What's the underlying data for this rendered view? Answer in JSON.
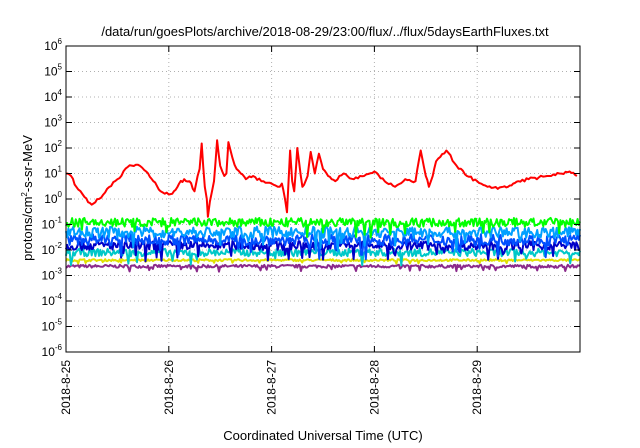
{
  "chart_data": {
    "type": "line",
    "title": "/data/run/goesPlots/archive/2018-08-29/23:00/flux/../flux/5daysEarthFluxes.txt",
    "xlabel": "Coordinated Universal Time (UTC)",
    "ylabel": {
      "prefix": "protons/cm",
      "sup": "2",
      "suffix": "-s-sr-MeV"
    },
    "y_scale": "log",
    "ylim": [
      1e-06,
      1000000.0
    ],
    "y_tick_exponents": [
      -6,
      -5,
      -4,
      -3,
      -2,
      -1,
      0,
      1,
      2,
      3,
      4,
      5,
      6
    ],
    "y_tick_base": "10",
    "xlim": [
      "2018-08-25",
      "2018-08-30"
    ],
    "x_tick_labels": [
      "2018-8-25",
      "2018-8-26",
      "2018-8-27",
      "2018-8-28",
      "2018-8-29"
    ],
    "grid": true,
    "legend": "none",
    "series": [
      {
        "color": "#ff0000",
        "x": [
          0.0,
          0.05,
          0.1,
          0.18,
          0.25,
          0.32,
          0.4,
          0.5,
          0.6,
          0.7,
          0.78,
          0.85,
          0.92,
          1.0,
          1.05,
          1.1,
          1.15,
          1.2,
          1.25,
          1.28,
          1.3,
          1.32,
          1.35,
          1.37,
          1.38,
          1.4,
          1.42,
          1.44,
          1.47,
          1.5,
          1.52,
          1.54,
          1.56,
          1.58,
          1.62,
          1.66,
          1.7,
          1.75,
          1.82,
          1.9,
          2.0,
          2.06,
          2.1,
          2.13,
          2.15,
          2.18,
          2.2,
          2.22,
          2.25,
          2.3,
          2.33,
          2.35,
          2.38,
          2.42,
          2.46,
          2.5,
          2.55,
          2.62,
          2.7,
          2.8,
          2.9,
          3.0,
          3.1,
          3.2,
          3.3,
          3.4,
          3.45,
          3.48,
          3.5,
          3.53,
          3.55,
          3.6,
          3.7,
          3.8,
          3.9,
          4.0,
          4.1,
          4.2,
          4.25,
          4.3,
          4.35,
          4.4,
          4.5,
          4.6,
          4.7,
          4.8,
          4.9,
          4.97
        ],
        "y": [
          10,
          8,
          3,
          1.2,
          0.6,
          1,
          2.5,
          6,
          18,
          22,
          12,
          5,
          2,
          1.5,
          2,
          4,
          6,
          5,
          2,
          8,
          15,
          150,
          3,
          1,
          0.2,
          0.8,
          2,
          5,
          200,
          20,
          12,
          8,
          10,
          170,
          40,
          15,
          10,
          6,
          8,
          5,
          4,
          3,
          4,
          1,
          0.3,
          80,
          5,
          2,
          100,
          3,
          5,
          8,
          70,
          10,
          60,
          15,
          8,
          5,
          10,
          6,
          8,
          12,
          5,
          3,
          6,
          5,
          80,
          20,
          8,
          3,
          5,
          30,
          80,
          20,
          8,
          5,
          3,
          2.5,
          3,
          3,
          4,
          5,
          6,
          7,
          8,
          10,
          12,
          8
        ]
      },
      {
        "color": "#00ff00",
        "x": [
          0,
          5
        ],
        "y": [
          0.12,
          0.12
        ],
        "noise": 0.18
      },
      {
        "color": "#00a0ff",
        "x": [
          0,
          5
        ],
        "y": [
          0.05,
          0.05
        ],
        "noise": 0.22
      },
      {
        "color": "#0050ff",
        "x": [
          0,
          5
        ],
        "y": [
          0.025,
          0.025
        ],
        "noise": 0.22
      },
      {
        "color": "#0000c8",
        "x": [
          0,
          5
        ],
        "y": [
          0.015,
          0.015
        ],
        "noise": 0.18
      },
      {
        "color": "#00c8c8",
        "x": [
          0,
          5
        ],
        "y": [
          0.008,
          0.008
        ],
        "noise": 0.15
      },
      {
        "color": "#e0e000",
        "x": [
          0,
          5
        ],
        "y": [
          0.004,
          0.004
        ],
        "noise": 0.04
      },
      {
        "color": "#8b2a8b",
        "x": [
          0,
          5
        ],
        "y": [
          0.0023,
          0.0023
        ],
        "noise": 0.06
      }
    ]
  }
}
